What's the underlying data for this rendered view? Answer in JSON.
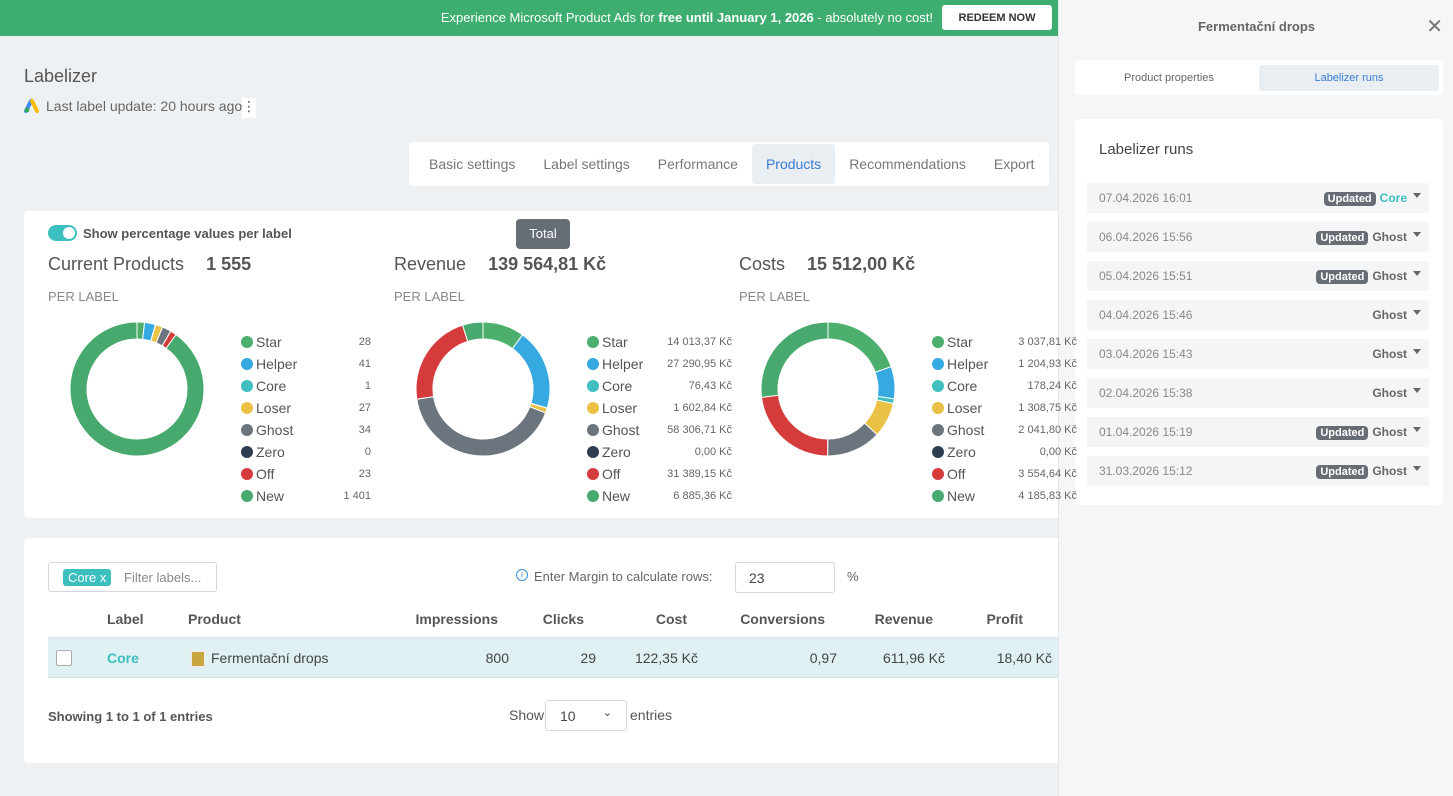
{
  "banner": {
    "text_pre": "Experience Microsoft Product Ads for",
    "text_bold": "free until January 1, 2026",
    "text_post": "- absolutely no cost!",
    "button": "REDEEM NOW"
  },
  "header": {
    "title": "Labelizer",
    "last_update": "Last label update: 20 hours ago"
  },
  "tabs": [
    "Basic settings",
    "Label settings",
    "Performance",
    "Products",
    "Recommendations",
    "Export"
  ],
  "toggle_label": "Show percentage values per label",
  "tooltip": "Total",
  "chart_data": [
    {
      "type": "pie",
      "title": "Current Products",
      "total": "1 555",
      "subtitle": "PER LABEL",
      "categories": [
        "Star",
        "Helper",
        "Core",
        "Loser",
        "Ghost",
        "Zero",
        "Off",
        "New"
      ],
      "colors": [
        "#4caf6e",
        "#35a9e0",
        "#3fbfbf",
        "#e9c145",
        "#6c757d",
        "#2c3e50",
        "#d63b3b",
        "#47a96e"
      ],
      "values": [
        28,
        41,
        1,
        27,
        34,
        0,
        23,
        1401
      ],
      "value_labels": [
        "28",
        "41",
        "1",
        "27",
        "34",
        "0",
        "23",
        "1 401"
      ]
    },
    {
      "type": "pie",
      "title": "Revenue",
      "total": "139 564,81 Kč",
      "subtitle": "PER LABEL",
      "categories": [
        "Star",
        "Helper",
        "Core",
        "Loser",
        "Ghost",
        "Zero",
        "Off",
        "New"
      ],
      "colors": [
        "#4caf6e",
        "#35a9e0",
        "#3fbfbf",
        "#e9c145",
        "#6c757d",
        "#2c3e50",
        "#d63b3b",
        "#47a96e"
      ],
      "values": [
        14013.37,
        27290.95,
        76.43,
        1602.84,
        58306.71,
        0,
        31389.15,
        6885.36
      ],
      "value_labels": [
        "14 013,37 Kč",
        "27 290,95 Kč",
        "76,43 Kč",
        "1 602,84 Kč",
        "58 306,71 Kč",
        "0,00 Kč",
        "31 389,15 Kč",
        "6 885,36 Kč"
      ]
    },
    {
      "type": "pie",
      "title": "Costs",
      "total": "15 512,00 Kč",
      "subtitle": "PER LABEL",
      "categories": [
        "Star",
        "Helper",
        "Core",
        "Loser",
        "Ghost",
        "Zero",
        "Off",
        "New"
      ],
      "colors": [
        "#4caf6e",
        "#35a9e0",
        "#3fbfbf",
        "#e9c145",
        "#6c757d",
        "#2c3e50",
        "#d63b3b",
        "#47a96e"
      ],
      "values": [
        3037.81,
        1204.93,
        178.24,
        1308.75,
        2041.8,
        0,
        3554.64,
        4185.83
      ],
      "value_labels": [
        "3 037,81 Kč",
        "1 204,93 Kč",
        "178,24 Kč",
        "1 308,75 Kč",
        "2 041,80 Kč",
        "0,00 Kč",
        "3 554,64 Kč",
        "4 185,83 Kč"
      ]
    }
  ],
  "table": {
    "filter_tag": "Core",
    "filter_remove": "x",
    "filter_placeholder": "Filter labels...",
    "margin_label": "Enter Margin to calculate rows:",
    "margin_value": "23",
    "margin_unit": "%",
    "columns": [
      "Label",
      "Product",
      "Impressions",
      "Clicks",
      "Cost",
      "Conversions",
      "Revenue",
      "Profit"
    ],
    "rows": [
      [
        "Core",
        "Fermentační drops",
        "800",
        "29",
        "122,35 Kč",
        "0,97",
        "611,96 Kč",
        "18,40 Kč"
      ]
    ],
    "info": "Showing 1 to 1 of 1 entries",
    "show": "Show",
    "page_size": "10",
    "entries": "entries"
  },
  "panel": {
    "title": "Fermentační drops",
    "tabs": [
      "Product properties",
      "Labelizer runs"
    ],
    "heading": "Labelizer runs",
    "runs": [
      {
        "date": "07.04.2026 16:01",
        "badge": "Updated",
        "label": "Core"
      },
      {
        "date": "06.04.2026 15:56",
        "badge": "Updated",
        "label": "Ghost"
      },
      {
        "date": "05.04.2026 15:51",
        "badge": "Updated",
        "label": "Ghost"
      },
      {
        "date": "04.04.2026 15:46",
        "label": "Ghost"
      },
      {
        "date": "03.04.2026 15:43",
        "label": "Ghost"
      },
      {
        "date": "02.04.2026 15:38",
        "label": "Ghost"
      },
      {
        "date": "01.04.2026 15:19",
        "badge": "Updated",
        "label": "Ghost"
      },
      {
        "date": "31.03.2026 15:12",
        "badge": "Updated",
        "label": "Ghost"
      }
    ]
  }
}
